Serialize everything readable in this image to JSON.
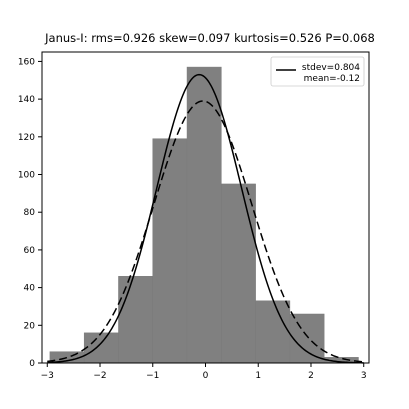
{
  "chart_data": {
    "type": "bar",
    "title": "Janus-I:   rms=0.926  skew=0.097   kurtosis=0.526   P=0.068",
    "xlabel": "",
    "ylabel": "",
    "xlim": [
      -3.1,
      3.1
    ],
    "ylim": [
      0,
      165
    ],
    "xticks": [
      -3,
      -2,
      -1,
      0,
      1,
      2,
      3
    ],
    "yticks": [
      0,
      20,
      40,
      60,
      80,
      100,
      120,
      140,
      160
    ],
    "grid": false,
    "bar_color": "#808080",
    "histogram": {
      "bins": [
        {
          "x0": -2.95,
          "x1": -2.3,
          "value": 6
        },
        {
          "x0": -2.3,
          "x1": -1.65,
          "value": 16
        },
        {
          "x0": -1.65,
          "x1": -1.0,
          "value": 46
        },
        {
          "x0": -1.0,
          "x1": -0.35,
          "value": 119
        },
        {
          "x0": -0.35,
          "x1": 0.3,
          "value": 157
        },
        {
          "x0": 0.3,
          "x1": 0.95,
          "value": 95
        },
        {
          "x0": 0.95,
          "x1": 1.6,
          "value": 33
        },
        {
          "x0": 1.6,
          "x1": 2.25,
          "value": 26
        },
        {
          "x0": 2.25,
          "x1": 2.9,
          "value": 3
        }
      ]
    },
    "series": [
      {
        "name": "stdev=0.804",
        "style": "solid",
        "peak": 153,
        "mean": -0.12,
        "sigma": 0.804
      },
      {
        "name": "mean=-0.12",
        "style": "dashed",
        "peak": 139,
        "mean": -0.05,
        "sigma": 0.926
      }
    ],
    "legend": {
      "position": "top-right",
      "entries": [
        "stdev=0.804",
        "mean=-0.12"
      ]
    }
  }
}
